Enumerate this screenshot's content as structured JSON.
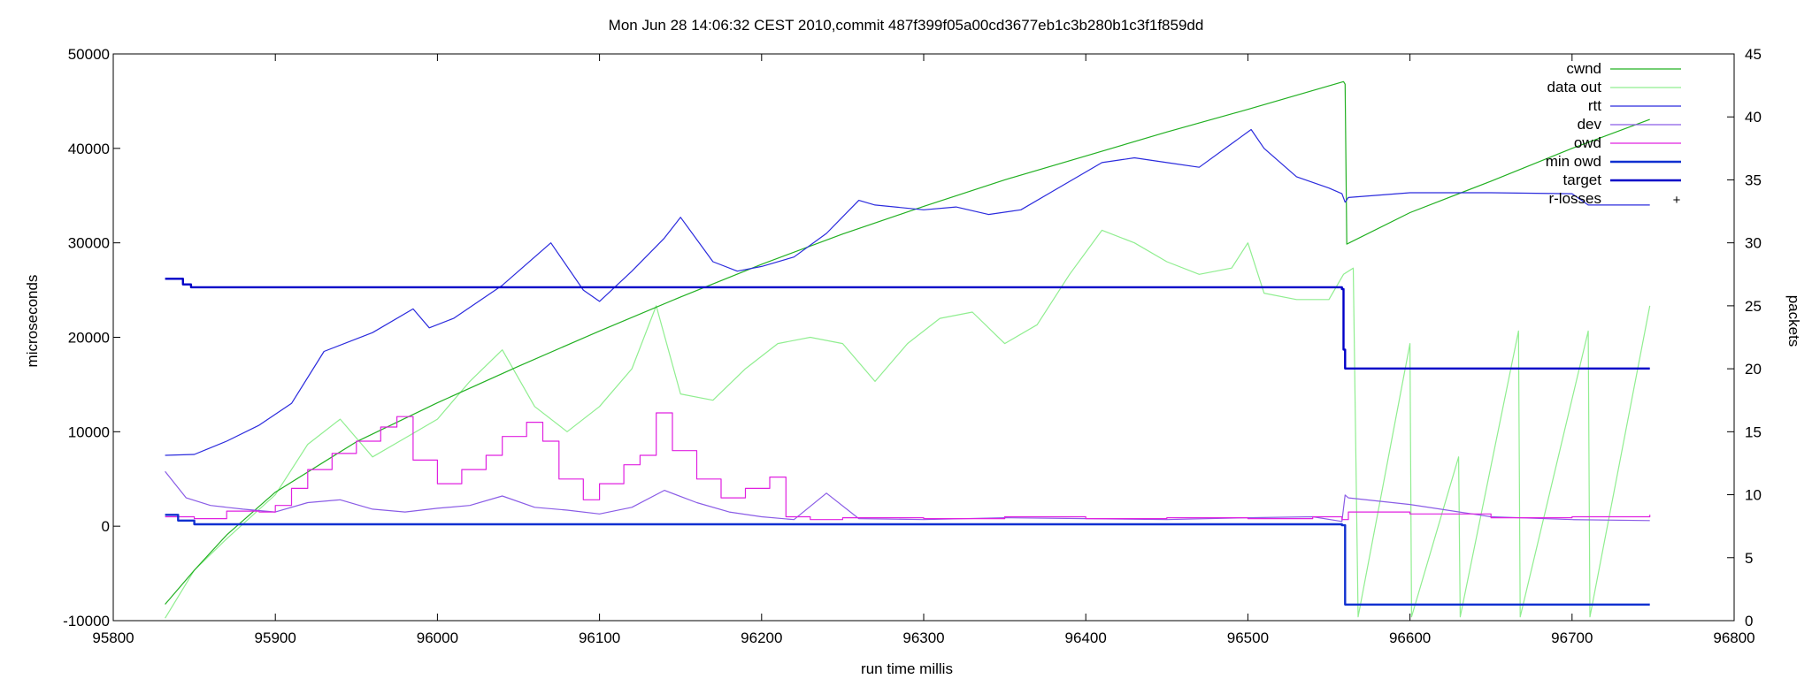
{
  "chart_data": {
    "type": "line",
    "title": "Mon Jun 28 14:06:32 CEST 2010,commit 487f399f05a00cd3677eb1c3b280b1c3f1f859dd",
    "xlabel": "run time millis",
    "ylabel": "microseconds",
    "y2label": "packets",
    "xlim": [
      95800,
      96800
    ],
    "ylim": [
      -10000,
      50000
    ],
    "y2lim": [
      0,
      45
    ],
    "xticks": [
      95800,
      95900,
      96000,
      96100,
      96200,
      96300,
      96400,
      96500,
      96600,
      96700,
      96800
    ],
    "yticks": [
      -10000,
      0,
      10000,
      20000,
      30000,
      40000,
      50000
    ],
    "y2ticks": [
      0,
      5,
      10,
      15,
      20,
      25,
      30,
      35,
      40,
      45
    ],
    "grid": false,
    "legend_position": "top-right",
    "series": [
      {
        "name": "cwnd",
        "axis": "y2",
        "color": "#22b022",
        "style": "line",
        "x": [
          95832,
          95850,
          95870,
          95900,
          95950,
          96000,
          96050,
          96100,
          96150,
          96200,
          96250,
          96300,
          96350,
          96400,
          96450,
          96500,
          96559,
          96560,
          96561,
          96600,
          96650,
          96700,
          96748
        ],
        "values": [
          1.3,
          4.0,
          6.8,
          10.2,
          14.2,
          17.3,
          20.2,
          23.0,
          25.7,
          28.3,
          30.7,
          32.9,
          35.0,
          36.9,
          38.8,
          40.6,
          42.8,
          42.6,
          29.9,
          32.4,
          34.9,
          37.5,
          39.8
        ]
      },
      {
        "name": "data out",
        "axis": "y2",
        "color": "#90ee90",
        "style": "line",
        "x": [
          95832,
          95850,
          95870,
          95900,
          95920,
          95940,
          95960,
          95980,
          96000,
          96020,
          96040,
          96060,
          96080,
          96100,
          96120,
          96135,
          96150,
          96170,
          96190,
          96210,
          96230,
          96250,
          96270,
          96290,
          96310,
          96330,
          96350,
          96370,
          96390,
          96410,
          96430,
          96450,
          96470,
          96490,
          96500,
          96510,
          96530,
          96550,
          96559,
          96565,
          96568,
          96600,
          96601,
          96630,
          96631,
          96667,
          96668,
          96710,
          96711,
          96748
        ],
        "values": [
          0.2,
          4.0,
          6.5,
          10.0,
          14.0,
          16.0,
          13.0,
          14.5,
          16.0,
          19.0,
          21.5,
          17.0,
          15.0,
          17.0,
          20.0,
          25.0,
          18.0,
          17.5,
          20.0,
          22.0,
          22.5,
          22.0,
          19.0,
          22.0,
          24.0,
          24.5,
          22.0,
          23.5,
          27.5,
          31.0,
          30.0,
          28.5,
          27.5,
          28.0,
          30.0,
          26.0,
          25.5,
          25.5,
          27.5,
          28.0,
          0.3,
          22.0,
          0.3,
          13.0,
          0.3,
          23.0,
          0.3,
          23.0,
          0.3,
          25.0
        ]
      },
      {
        "name": "rtt",
        "axis": "y",
        "color": "#2b2bdd",
        "style": "line",
        "x": [
          95832,
          95850,
          95870,
          95890,
          95910,
          95930,
          95960,
          95985,
          95995,
          96010,
          96040,
          96070,
          96090,
          96100,
          96120,
          96140,
          96150,
          96170,
          96185,
          96200,
          96220,
          96240,
          96260,
          96270,
          96300,
          96320,
          96340,
          96360,
          96380,
          96410,
          96430,
          96450,
          96470,
          96490,
          96502,
          96510,
          96530,
          96550,
          96558,
          96560,
          96562,
          96600,
          96650,
          96700,
          96710,
          96748
        ],
        "values": [
          7500,
          7600,
          9000,
          10700,
          13000,
          18500,
          20500,
          23000,
          21000,
          22000,
          25500,
          30000,
          25000,
          23800,
          27000,
          30500,
          32700,
          28000,
          27000,
          27500,
          28500,
          31000,
          34500,
          34000,
          33500,
          33800,
          33000,
          33500,
          35500,
          38500,
          39000,
          38500,
          38000,
          40500,
          42000,
          40000,
          37000,
          35800,
          35200,
          34300,
          34800,
          35300,
          35300,
          35200,
          34000,
          34000
        ]
      },
      {
        "name": "dev",
        "axis": "y",
        "color": "#8a5ce6",
        "style": "line",
        "x": [
          95832,
          95845,
          95860,
          95880,
          95900,
          95920,
          95940,
          95960,
          95980,
          96000,
          96020,
          96040,
          96060,
          96080,
          96100,
          96120,
          96140,
          96160,
          96180,
          96200,
          96220,
          96240,
          96260,
          96300,
          96350,
          96400,
          96450,
          96500,
          96540,
          96558,
          96560,
          96562,
          96600,
          96650,
          96700,
          96748
        ],
        "values": [
          5800,
          3000,
          2200,
          1800,
          1500,
          2500,
          2800,
          1800,
          1500,
          1900,
          2200,
          3200,
          2000,
          1700,
          1300,
          2000,
          3800,
          2500,
          1500,
          1000,
          700,
          3500,
          800,
          700,
          900,
          800,
          700,
          900,
          1000,
          500,
          3300,
          3000,
          2300,
          1000,
          700,
          600
        ]
      },
      {
        "name": "owd",
        "axis": "y",
        "color": "#e020e0",
        "style": "step",
        "x": [
          95832,
          95850,
          95870,
          95890,
          95900,
          95910,
          95920,
          95935,
          95950,
          95965,
          95975,
          95985,
          96000,
          96015,
          96030,
          96040,
          96055,
          96065,
          96075,
          96090,
          96100,
          96115,
          96125,
          96135,
          96145,
          96160,
          96175,
          96190,
          96205,
          96215,
          96230,
          96250,
          96300,
          96350,
          96400,
          96450,
          96500,
          96540,
          96558,
          96562,
          96600,
          96650,
          96700,
          96748
        ],
        "values": [
          1000,
          800,
          1600,
          1500,
          2200,
          4000,
          6000,
          7700,
          9000,
          10500,
          11600,
          7000,
          4500,
          6000,
          7500,
          9500,
          11000,
          9000,
          5000,
          2800,
          4500,
          6500,
          7500,
          12000,
          8000,
          5000,
          3000,
          4000,
          5200,
          1000,
          700,
          900,
          800,
          1000,
          800,
          900,
          800,
          1000,
          700,
          1500,
          1300,
          900,
          1000,
          1200
        ]
      },
      {
        "name": "min owd",
        "axis": "y",
        "color": "#1030d0",
        "style": "step",
        "x": [
          95832,
          95840,
          95850,
          96558,
          96560,
          96748
        ],
        "values": [
          1200,
          600,
          200,
          100,
          -8300,
          -8300
        ]
      },
      {
        "name": "target",
        "axis": "y",
        "color": "#0000c8",
        "style": "step",
        "x": [
          95832,
          95843,
          95848,
          96558,
          96559,
          96560,
          96748
        ],
        "values": [
          26200,
          25600,
          25300,
          25100,
          18700,
          16700,
          16700
        ]
      },
      {
        "name": "r-losses",
        "axis": "y",
        "color": "#000000",
        "style": "points",
        "x": [],
        "values": []
      }
    ]
  }
}
